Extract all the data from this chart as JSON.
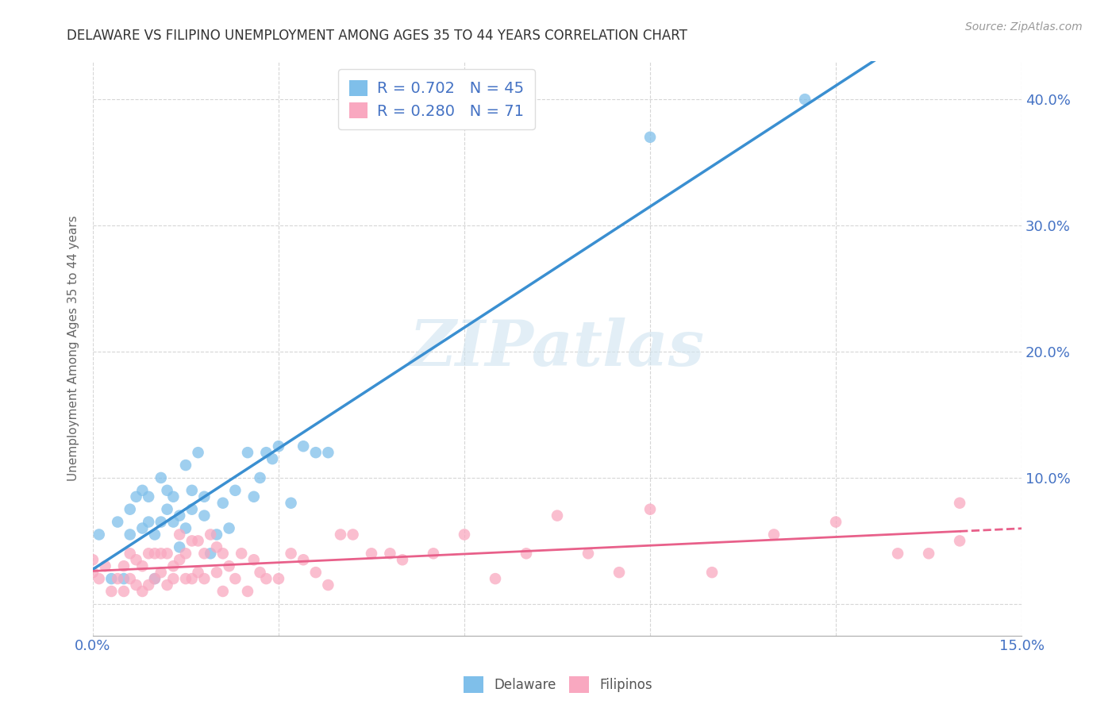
{
  "title": "DELAWARE VS FILIPINO UNEMPLOYMENT AMONG AGES 35 TO 44 YEARS CORRELATION CHART",
  "source": "Source: ZipAtlas.com",
  "ylabel": "Unemployment Among Ages 35 to 44 years",
  "xlim": [
    0.0,
    0.15
  ],
  "ylim": [
    -0.025,
    0.43
  ],
  "xticks": [
    0.0,
    0.03,
    0.06,
    0.09,
    0.12,
    0.15
  ],
  "xtick_labels": [
    "0.0%",
    "",
    "",
    "",
    "",
    "15.0%"
  ],
  "yticks": [
    0.0,
    0.1,
    0.2,
    0.3,
    0.4
  ],
  "ytick_labels": [
    "",
    "10.0%",
    "20.0%",
    "30.0%",
    "40.0%"
  ],
  "delaware_R": 0.702,
  "delaware_N": 45,
  "filipino_R": 0.28,
  "filipino_N": 71,
  "delaware_color": "#7fbfea",
  "filipino_color": "#f9a8c0",
  "delaware_line_color": "#3a8fd1",
  "filipino_line_solid_color": "#e8608a",
  "filipino_line_dash_color": "#e8608a",
  "tick_color": "#4472c4",
  "ylabel_color": "#666666",
  "title_color": "#333333",
  "source_color": "#999999",
  "watermark_text": "ZIPatlas",
  "watermark_color": "#d0e4f0",
  "background_color": "#ffffff",
  "grid_color": "#cccccc",
  "delaware_scatter_x": [
    0.001,
    0.003,
    0.004,
    0.005,
    0.006,
    0.006,
    0.007,
    0.008,
    0.008,
    0.009,
    0.009,
    0.01,
    0.01,
    0.011,
    0.011,
    0.012,
    0.012,
    0.013,
    0.013,
    0.014,
    0.014,
    0.015,
    0.015,
    0.016,
    0.016,
    0.017,
    0.018,
    0.018,
    0.019,
    0.02,
    0.021,
    0.022,
    0.023,
    0.025,
    0.026,
    0.027,
    0.028,
    0.029,
    0.03,
    0.032,
    0.034,
    0.036,
    0.038,
    0.09,
    0.115
  ],
  "delaware_scatter_y": [
    0.055,
    0.02,
    0.065,
    0.02,
    0.055,
    0.075,
    0.085,
    0.06,
    0.09,
    0.065,
    0.085,
    0.02,
    0.055,
    0.065,
    0.1,
    0.075,
    0.09,
    0.065,
    0.085,
    0.045,
    0.07,
    0.06,
    0.11,
    0.075,
    0.09,
    0.12,
    0.07,
    0.085,
    0.04,
    0.055,
    0.08,
    0.06,
    0.09,
    0.12,
    0.085,
    0.1,
    0.12,
    0.115,
    0.125,
    0.08,
    0.125,
    0.12,
    0.12,
    0.37,
    0.4
  ],
  "filipino_scatter_x": [
    0.0,
    0.0,
    0.001,
    0.002,
    0.003,
    0.004,
    0.005,
    0.005,
    0.006,
    0.006,
    0.007,
    0.007,
    0.008,
    0.008,
    0.009,
    0.009,
    0.01,
    0.01,
    0.011,
    0.011,
    0.012,
    0.012,
    0.013,
    0.013,
    0.014,
    0.014,
    0.015,
    0.015,
    0.016,
    0.016,
    0.017,
    0.017,
    0.018,
    0.018,
    0.019,
    0.02,
    0.02,
    0.021,
    0.021,
    0.022,
    0.023,
    0.024,
    0.025,
    0.026,
    0.027,
    0.028,
    0.03,
    0.032,
    0.034,
    0.036,
    0.038,
    0.04,
    0.042,
    0.045,
    0.048,
    0.05,
    0.055,
    0.06,
    0.065,
    0.07,
    0.075,
    0.08,
    0.085,
    0.09,
    0.1,
    0.11,
    0.12,
    0.13,
    0.135,
    0.14,
    0.14
  ],
  "filipino_scatter_y": [
    0.025,
    0.035,
    0.02,
    0.03,
    0.01,
    0.02,
    0.01,
    0.03,
    0.02,
    0.04,
    0.015,
    0.035,
    0.01,
    0.03,
    0.015,
    0.04,
    0.02,
    0.04,
    0.025,
    0.04,
    0.015,
    0.04,
    0.02,
    0.03,
    0.055,
    0.035,
    0.02,
    0.04,
    0.02,
    0.05,
    0.025,
    0.05,
    0.02,
    0.04,
    0.055,
    0.025,
    0.045,
    0.01,
    0.04,
    0.03,
    0.02,
    0.04,
    0.01,
    0.035,
    0.025,
    0.02,
    0.02,
    0.04,
    0.035,
    0.025,
    0.015,
    0.055,
    0.055,
    0.04,
    0.04,
    0.035,
    0.04,
    0.055,
    0.02,
    0.04,
    0.07,
    0.04,
    0.025,
    0.075,
    0.025,
    0.055,
    0.065,
    0.04,
    0.04,
    0.05,
    0.08
  ]
}
